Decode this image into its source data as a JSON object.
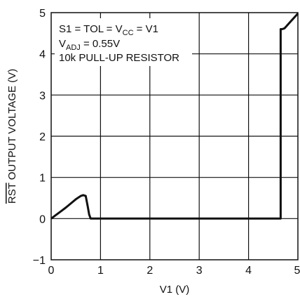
{
  "chart_data": {
    "type": "line",
    "title": "",
    "xlabel": "V1 (V)",
    "ylabel_overbar": "RST",
    "ylabel_rest": " OUTPUT VOLTAGE (V)",
    "xlim": [
      0,
      5
    ],
    "ylim": [
      -1,
      5
    ],
    "xticks": [
      0,
      1,
      2,
      3,
      4,
      5
    ],
    "yticks": [
      -1,
      0,
      1,
      2,
      3,
      4,
      5
    ],
    "xtick_labels": [
      "0",
      "1",
      "2",
      "3",
      "4",
      "5"
    ],
    "ytick_labels": [
      "−1",
      "0",
      "1",
      "2",
      "3",
      "4",
      "5"
    ],
    "grid": true,
    "annotations": {
      "line1": {
        "a": "S1 =  TOL = V",
        "sub": "CC",
        "b": " = V1"
      },
      "line2": {
        "a": "V",
        "sub": "ADJ",
        "b": " = 0.55V"
      },
      "line3": "10k PULL-UP RESISTOR"
    },
    "series": [
      {
        "x": [
          0,
          0.1,
          0.2,
          0.3,
          0.4,
          0.5,
          0.6,
          0.65,
          0.7,
          0.74,
          0.77,
          0.8,
          0.82,
          1.5,
          3.0,
          4.0,
          4.65,
          4.65,
          4.68,
          4.73,
          4.85,
          5.0
        ],
        "y": [
          0,
          0.09,
          0.18,
          0.27,
          0.37,
          0.47,
          0.55,
          0.57,
          0.55,
          0.3,
          0.1,
          0.0,
          0.0,
          0.0,
          0.0,
          0.0,
          0.0,
          4.6,
          4.6,
          4.62,
          4.78,
          4.98
        ]
      }
    ]
  }
}
